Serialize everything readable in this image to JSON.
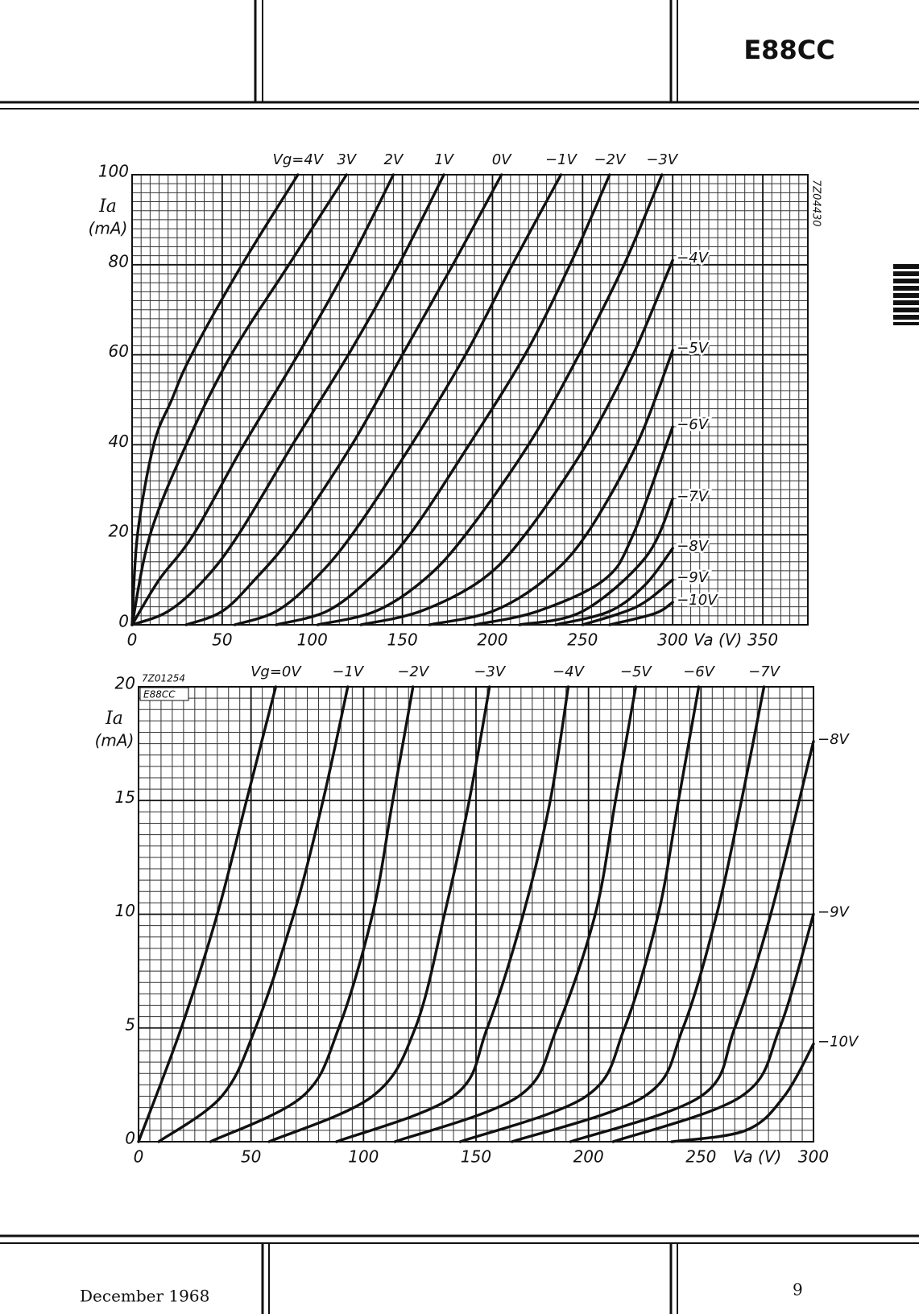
{
  "header": {
    "title": "E88CC"
  },
  "footer": {
    "date": "December 1968",
    "page": "9"
  },
  "chart_data": [
    {
      "type": "line",
      "code": "7Z04430",
      "xlabel": "Va (V)",
      "ylabel": "Ia",
      "yunit": "(mA)",
      "xlim": [
        0,
        375
      ],
      "ylim": [
        0,
        100
      ],
      "xticks": [
        0,
        50,
        100,
        150,
        200,
        250,
        300,
        350
      ],
      "yticks": [
        0,
        20,
        40,
        60,
        80,
        100
      ],
      "grid": {
        "x_step": 5,
        "y_step": 2
      },
      "color": "#111111",
      "series": [
        {
          "name": "Vg=4V",
          "x": [
            0,
            3,
            12,
            22,
            33,
            61,
            92
          ],
          "values": [
            0,
            20,
            40,
            50,
            60,
            80,
            100
          ]
        },
        {
          "name": "3V",
          "x": [
            0,
            10,
            30,
            55,
            87,
            119
          ],
          "values": [
            0,
            20,
            40,
            60,
            80,
            100
          ]
        },
        {
          "name": "2V",
          "x": [
            0,
            15,
            34,
            62,
            92,
            120,
            145
          ],
          "values": [
            0,
            10,
            20,
            40,
            60,
            80,
            100
          ]
        },
        {
          "name": "1V",
          "x": [
            0,
            20,
            40,
            59,
            89,
            120,
            148,
            173
          ],
          "values": [
            0,
            3,
            10,
            20,
            40,
            60,
            80,
            100
          ]
        },
        {
          "name": "0V",
          "x": [
            30,
            50,
            68,
            89,
            122,
            150,
            178,
            205
          ],
          "values": [
            0,
            3,
            10,
            20,
            40,
            60,
            80,
            100
          ]
        },
        {
          "name": "−1V",
          "x": [
            57,
            80,
            101,
            122,
            155,
            185,
            211,
            238
          ],
          "values": [
            0,
            3,
            10,
            20,
            40,
            60,
            80,
            100
          ]
        },
        {
          "name": "−2V",
          "x": [
            80,
            108,
            131,
            154,
            187,
            218,
            243,
            265
          ],
          "values": [
            0,
            3,
            10,
            20,
            40,
            60,
            80,
            100
          ]
        },
        {
          "name": "−3V",
          "x": [
            103,
            135,
            162,
            185,
            220,
            248,
            273,
            294
          ],
          "values": [
            0,
            3,
            10,
            20,
            40,
            60,
            80,
            100
          ]
        },
        {
          "name": "−4V",
          "x": [
            127,
            160,
            194,
            218,
            252,
            278,
            300
          ],
          "values": [
            0,
            3,
            10,
            20,
            40,
            60,
            81
          ]
        },
        {
          "name": "−5V",
          "x": [
            165,
            200,
            229,
            252,
            280,
            300
          ],
          "values": [
            0,
            3,
            10,
            20,
            40,
            61
          ]
        },
        {
          "name": "−6V",
          "x": [
            190,
            225,
            262,
            278,
            300
          ],
          "values": [
            0,
            3,
            10,
            20,
            44
          ]
        },
        {
          "name": "−7V",
          "x": [
            215,
            250,
            285,
            300
          ],
          "values": [
            0,
            3,
            15,
            28
          ]
        },
        {
          "name": "−8V",
          "x": [
            235,
            265,
            285,
            300
          ],
          "values": [
            0,
            3,
            9,
            17
          ]
        },
        {
          "name": "−9V",
          "x": [
            250,
            280,
            300
          ],
          "values": [
            0,
            4,
            10
          ]
        },
        {
          "name": "−10V",
          "x": [
            265,
            290,
            300
          ],
          "values": [
            0,
            2.5,
            5
          ]
        }
      ]
    },
    {
      "type": "line",
      "code": "7Z01254",
      "tag": "E88CC",
      "xlabel": "Va (V)",
      "ylabel": "Ia",
      "yunit": "(mA)",
      "xlim": [
        0,
        300
      ],
      "ylim": [
        0,
        20
      ],
      "xticks": [
        0,
        50,
        100,
        150,
        200,
        250,
        300
      ],
      "yticks": [
        0,
        5,
        10,
        15,
        20
      ],
      "grid": {
        "x_step": 5,
        "y_step": 0.5
      },
      "color": "#111111",
      "series": [
        {
          "name": "Vg=0V",
          "x": [
            0,
            19,
            35,
            48,
            61
          ],
          "values": [
            0,
            5,
            10,
            15,
            20
          ]
        },
        {
          "name": "−1V",
          "x": [
            9,
            37,
            52,
            69,
            82,
            93
          ],
          "values": [
            0,
            2,
            5,
            10,
            15,
            20
          ]
        },
        {
          "name": "−2V",
          "x": [
            32,
            73,
            89,
            104,
            113,
            122
          ],
          "values": [
            0,
            2,
            5,
            10,
            15,
            20
          ]
        },
        {
          "name": "−3V",
          "x": [
            58,
            104,
            123,
            136,
            147,
            156
          ],
          "values": [
            0,
            2,
            5,
            10,
            15,
            20
          ]
        },
        {
          "name": "−4V",
          "x": [
            88,
            140,
            155,
            171,
            183,
            191
          ],
          "values": [
            0,
            2,
            5,
            10,
            15,
            20
          ]
        },
        {
          "name": "−5V",
          "x": [
            114,
            169,
            186,
            203,
            212,
            221
          ],
          "values": [
            0,
            2,
            5,
            10,
            15,
            20
          ]
        },
        {
          "name": "−6V",
          "x": [
            143,
            199,
            216,
            231,
            240,
            249
          ],
          "values": [
            0,
            2,
            5,
            10,
            15,
            20
          ]
        },
        {
          "name": "−7V",
          "x": [
            166,
            225,
            242,
            257,
            268,
            278
          ],
          "values": [
            0,
            2,
            5,
            10,
            15,
            20
          ]
        },
        {
          "name": "−8V",
          "x": [
            192,
            250,
            265,
            281,
            300
          ],
          "values": [
            0,
            2,
            5,
            10,
            17.6
          ]
        },
        {
          "name": "−9V",
          "x": [
            211,
            268,
            285,
            300
          ],
          "values": [
            0,
            2,
            5,
            10
          ]
        },
        {
          "name": "−10V",
          "x": [
            237,
            270,
            287,
            300
          ],
          "values": [
            0,
            0.5,
            2,
            4.3
          ]
        }
      ]
    }
  ]
}
